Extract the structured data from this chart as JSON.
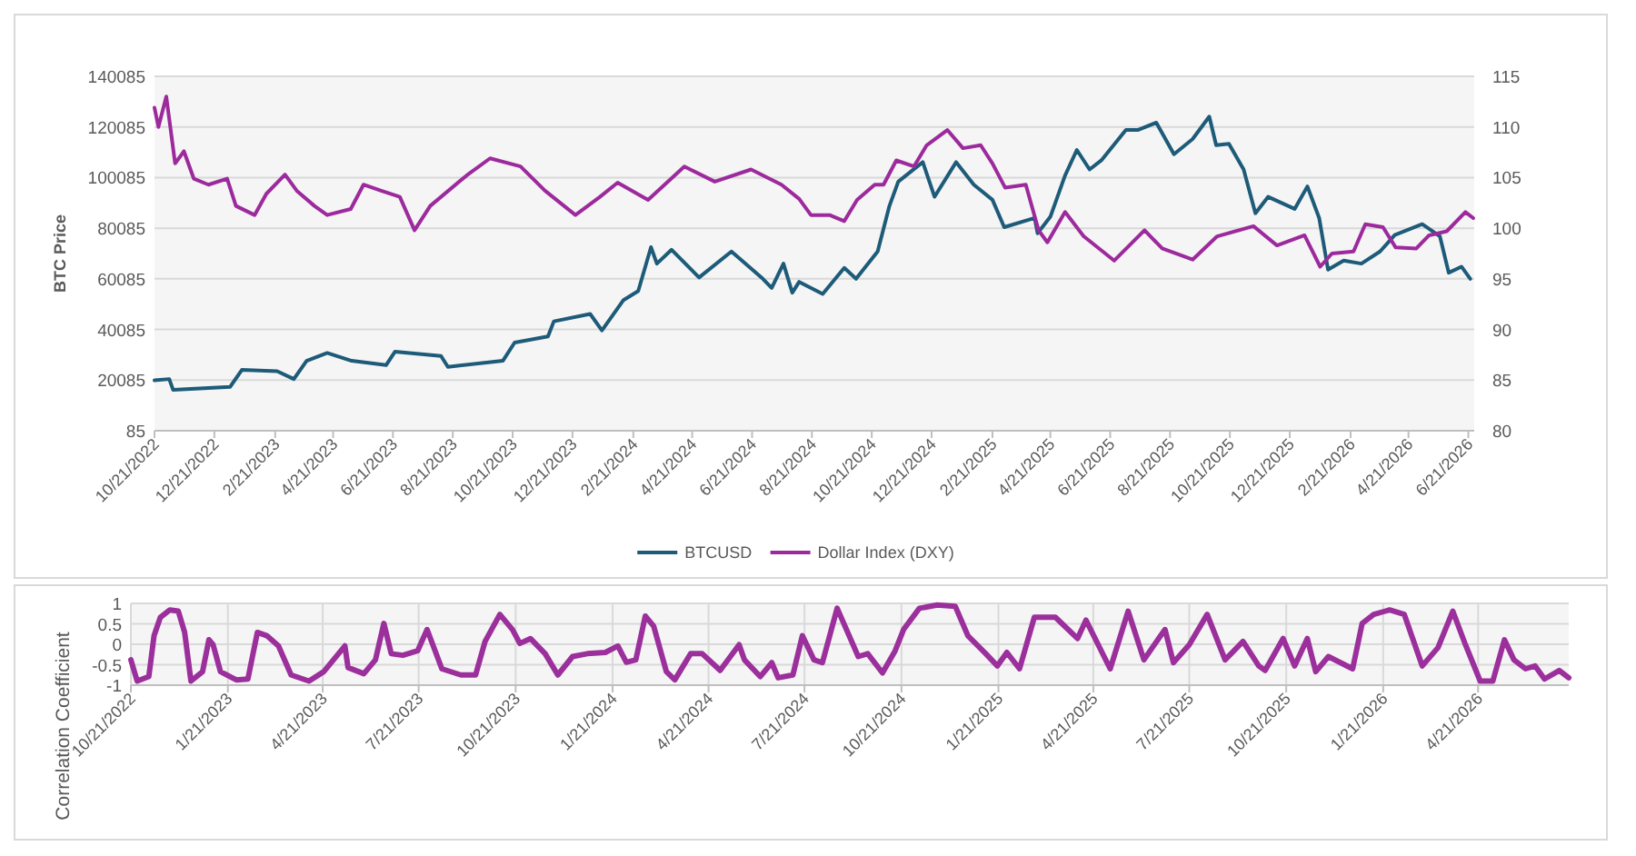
{
  "chart_data": [
    {
      "type": "line",
      "ylabel": "BTC Price",
      "legend": "bottom",
      "grid": "y",
      "xlim": [
        "2022-10-21",
        "2026-06-27"
      ],
      "xticks": [
        {
          "value": "2022-10-21",
          "label": "10/21/2022"
        },
        {
          "value": "2022-12-21",
          "label": "12/21/2022"
        },
        {
          "value": "2023-02-21",
          "label": "2/21/2023"
        },
        {
          "value": "2023-04-21",
          "label": "4/21/2023"
        },
        {
          "value": "2023-06-21",
          "label": "6/21/2023"
        },
        {
          "value": "2023-08-21",
          "label": "8/21/2023"
        },
        {
          "value": "2023-10-21",
          "label": "10/21/2023"
        },
        {
          "value": "2023-12-21",
          "label": "12/21/2023"
        },
        {
          "value": "2024-02-21",
          "label": "2/21/2024"
        },
        {
          "value": "2024-04-21",
          "label": "4/21/2024"
        },
        {
          "value": "2024-06-21",
          "label": "6/21/2024"
        },
        {
          "value": "2024-08-21",
          "label": "8/21/2024"
        },
        {
          "value": "2024-10-21",
          "label": "10/21/2024"
        },
        {
          "value": "2024-12-21",
          "label": "12/21/2024"
        },
        {
          "value": "2025-02-21",
          "label": "2/21/2025"
        },
        {
          "value": "2025-04-21",
          "label": "4/21/2025"
        },
        {
          "value": "2025-06-21",
          "label": "6/21/2025"
        },
        {
          "value": "2025-08-21",
          "label": "8/21/2025"
        },
        {
          "value": "2025-10-21",
          "label": "10/21/2025"
        },
        {
          "value": "2025-12-21",
          "label": "12/21/2025"
        },
        {
          "value": "2026-02-21",
          "label": "2/21/2026"
        },
        {
          "value": "2026-04-21",
          "label": "4/21/2026"
        },
        {
          "value": "2026-06-21",
          "label": "6/21/2026"
        }
      ],
      "ylim": [
        85,
        140085
      ],
      "yticks": [
        85,
        20085,
        40085,
        60085,
        80085,
        100085,
        120085,
        140085
      ],
      "y2lim": [
        80,
        115
      ],
      "y2ticks": [
        80,
        85,
        90,
        95,
        100,
        105,
        110,
        115
      ],
      "series": [
        {
          "name": "BTCUSD",
          "color": "#1d5b79",
          "x": [
            "2022-10-21",
            "2022-11-05",
            "2022-11-09",
            "2023-01-06",
            "2023-01-18",
            "2023-02-23",
            "2023-03-12",
            "2023-03-25",
            "2023-04-15",
            "2023-05-10",
            "2023-06-14",
            "2023-06-23",
            "2023-08-09",
            "2023-08-16",
            "2023-10-11",
            "2023-10-23",
            "2023-11-26",
            "2023-12-02",
            "2024-01-08",
            "2024-01-20",
            "2024-02-11",
            "2024-02-26",
            "2024-03-10",
            "2024-03-16",
            "2024-03-31",
            "2024-04-28",
            "2024-05-31",
            "2024-07-02",
            "2024-07-11",
            "2024-07-23",
            "2024-08-01",
            "2024-08-08",
            "2024-09-01",
            "2024-09-23",
            "2024-10-05",
            "2024-10-27",
            "2024-11-08",
            "2024-11-17",
            "2024-12-12",
            "2024-12-24",
            "2025-01-15",
            "2025-02-02",
            "2025-02-21",
            "2025-03-05",
            "2025-04-05",
            "2025-04-08",
            "2025-04-21",
            "2025-05-06",
            "2025-05-18",
            "2025-05-31",
            "2025-06-12",
            "2025-07-07",
            "2025-07-19",
            "2025-08-07",
            "2025-08-25",
            "2025-09-13",
            "2025-09-30",
            "2025-10-07",
            "2025-10-20",
            "2025-11-04",
            "2025-11-16",
            "2025-11-29",
            "2025-12-26",
            "2026-01-08",
            "2026-01-20",
            "2026-01-29",
            "2026-02-14",
            "2026-03-04",
            "2026-03-23",
            "2026-04-07",
            "2026-05-05",
            "2026-05-23",
            "2026-06-01",
            "2026-06-14",
            "2026-06-23"
          ],
          "values": [
            20000,
            20500,
            16200,
            17400,
            24100,
            23600,
            20500,
            27700,
            30800,
            27700,
            26000,
            31300,
            29600,
            25300,
            27700,
            34900,
            37300,
            43300,
            46200,
            39700,
            51700,
            55300,
            72600,
            66100,
            71600,
            60600,
            70900,
            60100,
            56500,
            66100,
            54600,
            58900,
            54100,
            64400,
            60100,
            70900,
            88900,
            98500,
            106200,
            92500,
            106200,
            97300,
            91300,
            80500,
            84100,
            78100,
            84600,
            100900,
            111000,
            103300,
            106900,
            118900,
            118900,
            121800,
            109300,
            115300,
            124200,
            112900,
            113400,
            103300,
            86000,
            92500,
            87700,
            96600,
            84100,
            63700,
            67300,
            66100,
            70900,
            77400,
            81700,
            76900,
            62500,
            64900,
            60100
          ]
        },
        {
          "name": "Dollar Index (DXY)",
          "color": "#9c2a9c",
          "axis": "y2",
          "x": [
            "2022-10-21",
            "2022-10-25",
            "2022-11-02",
            "2022-11-11",
            "2022-11-20",
            "2022-11-30",
            "2022-12-15",
            "2023-01-03",
            "2023-01-12",
            "2023-01-31",
            "2023-02-12",
            "2023-03-03",
            "2023-03-15",
            "2023-04-02",
            "2023-04-15",
            "2023-05-09",
            "2023-05-22",
            "2023-06-09",
            "2023-06-28",
            "2023-07-13",
            "2023-07-29",
            "2023-09-04",
            "2023-09-28",
            "2023-10-29",
            "2023-11-23",
            "2023-12-24",
            "2024-01-18",
            "2024-02-05",
            "2024-03-07",
            "2024-04-13",
            "2024-05-14",
            "2024-06-20",
            "2024-07-21",
            "2024-08-08",
            "2024-08-20",
            "2024-09-08",
            "2024-09-23",
            "2024-10-06",
            "2024-10-24",
            "2024-11-02",
            "2024-11-15",
            "2024-12-03",
            "2024-12-16",
            "2025-01-06",
            "2025-01-22",
            "2025-02-09",
            "2025-02-21",
            "2025-03-06",
            "2025-03-27",
            "2025-04-09",
            "2025-04-18",
            "2025-05-06",
            "2025-05-25",
            "2025-06-25",
            "2025-07-26",
            "2025-08-13",
            "2025-09-13",
            "2025-10-08",
            "2025-11-14",
            "2025-12-08",
            "2026-01-05",
            "2026-01-21",
            "2026-02-02",
            "2026-02-24",
            "2026-03-08",
            "2026-03-26",
            "2026-04-08",
            "2026-04-29",
            "2026-05-12",
            "2026-05-30",
            "2026-06-18",
            "2026-06-26"
          ],
          "values": [
            111.9,
            110.0,
            113.0,
            106.4,
            107.6,
            104.9,
            104.3,
            104.9,
            102.2,
            101.3,
            103.4,
            105.3,
            103.7,
            102.2,
            101.3,
            101.9,
            104.3,
            103.7,
            103.1,
            99.8,
            102.2,
            105.2,
            106.9,
            106.1,
            103.7,
            101.3,
            103.1,
            104.5,
            102.8,
            106.1,
            104.6,
            105.8,
            104.3,
            102.9,
            101.3,
            101.3,
            100.7,
            102.8,
            104.3,
            104.3,
            106.7,
            106.1,
            108.2,
            109.7,
            107.9,
            108.2,
            106.4,
            104.0,
            104.3,
            99.8,
            98.6,
            101.6,
            99.2,
            96.8,
            99.8,
            98.0,
            96.9,
            99.2,
            100.2,
            98.3,
            99.3,
            96.2,
            97.5,
            97.7,
            100.4,
            100.1,
            98.1,
            98.0,
            99.3,
            99.7,
            101.6,
            101.0
          ]
        }
      ]
    },
    {
      "type": "line",
      "ylabel": "Correlation Coefficient",
      "grid": true,
      "xlim": [
        "2022-10-21",
        "2026-07-16"
      ],
      "xticks": [
        {
          "value": "2022-10-21",
          "label": "10/21/2022"
        },
        {
          "value": "2023-01-21",
          "label": "1/21/2023"
        },
        {
          "value": "2023-04-21",
          "label": "4/21/2023"
        },
        {
          "value": "2023-07-21",
          "label": "7/21/2023"
        },
        {
          "value": "2023-10-21",
          "label": "10/21/2023"
        },
        {
          "value": "2024-01-21",
          "label": "1/21/2024"
        },
        {
          "value": "2024-04-21",
          "label": "4/21/2024"
        },
        {
          "value": "2024-07-21",
          "label": "7/21/2024"
        },
        {
          "value": "2024-10-21",
          "label": "10/21/2024"
        },
        {
          "value": "2025-01-21",
          "label": "1/21/2025"
        },
        {
          "value": "2025-04-21",
          "label": "4/21/2025"
        },
        {
          "value": "2025-07-21",
          "label": "7/21/2025"
        },
        {
          "value": "2025-10-21",
          "label": "10/21/2025"
        },
        {
          "value": "2026-01-21",
          "label": "1/21/2026"
        },
        {
          "value": "2026-04-21",
          "label": "4/21/2026"
        }
      ],
      "ylim": [
        -1,
        1
      ],
      "yticks": [
        -1,
        -0.5,
        0,
        0.5,
        1
      ],
      "series": [
        {
          "color": "#9b2f9b",
          "x": [
            "2022-10-21",
            "2022-10-27",
            "2022-11-07",
            "2022-11-12",
            "2022-11-18",
            "2022-11-27",
            "2022-12-05",
            "2022-12-11",
            "2022-12-17",
            "2022-12-28",
            "2023-01-03",
            "2023-01-07",
            "2023-01-14",
            "2023-01-29",
            "2023-02-09",
            "2023-02-18",
            "2023-02-27",
            "2023-03-10",
            "2023-03-22",
            "2023-04-08",
            "2023-04-22",
            "2023-05-12",
            "2023-05-15",
            "2023-05-30",
            "2023-06-10",
            "2023-06-18",
            "2023-06-25",
            "2023-07-06",
            "2023-07-20",
            "2023-07-29",
            "2023-08-12",
            "2023-08-30",
            "2023-09-13",
            "2023-09-22",
            "2023-10-06",
            "2023-10-18",
            "2023-10-25",
            "2023-11-04",
            "2023-11-18",
            "2023-11-30",
            "2023-12-14",
            "2023-12-28",
            "2024-01-14",
            "2024-01-26",
            "2024-02-03",
            "2024-02-12",
            "2024-02-21",
            "2024-02-29",
            "2024-03-12",
            "2024-03-20",
            "2024-04-04",
            "2024-04-15",
            "2024-05-02",
            "2024-05-20",
            "2024-05-25",
            "2024-06-09",
            "2024-06-20",
            "2024-06-26",
            "2024-07-10",
            "2024-07-19",
            "2024-07-30",
            "2024-08-07",
            "2024-08-21",
            "2024-09-10",
            "2024-09-19",
            "2024-10-03",
            "2024-10-15",
            "2024-10-23",
            "2024-11-07",
            "2024-11-24",
            "2024-12-11",
            "2024-12-23",
            "2025-01-09",
            "2025-01-20",
            "2025-01-29",
            "2025-02-10",
            "2025-02-24",
            "2025-03-16",
            "2025-03-25",
            "2025-04-06",
            "2025-04-14",
            "2025-05-07",
            "2025-05-24",
            "2025-06-08",
            "2025-06-16",
            "2025-06-28",
            "2025-07-06",
            "2025-07-21",
            "2025-08-07",
            "2025-08-24",
            "2025-09-10",
            "2025-09-25",
            "2025-10-01",
            "2025-10-18",
            "2025-10-29",
            "2025-11-10",
            "2025-11-18",
            "2025-11-30",
            "2025-12-23",
            "2026-01-01",
            "2026-01-12",
            "2026-01-27",
            "2026-02-10",
            "2026-02-27",
            "2026-03-14",
            "2026-03-28",
            "2026-04-09",
            "2026-04-23",
            "2026-05-05",
            "2026-05-16",
            "2026-05-25",
            "2026-06-05",
            "2026-06-14",
            "2026-06-23",
            "2026-07-07",
            "2026-07-16"
          ],
          "values": [
            -0.38,
            -0.9,
            -0.79,
            0.21,
            0.66,
            0.84,
            0.81,
            0.29,
            -0.9,
            -0.67,
            0.11,
            -0.01,
            -0.67,
            -0.87,
            -0.85,
            0.29,
            0.21,
            -0.04,
            -0.75,
            -0.9,
            -0.67,
            -0.04,
            -0.57,
            -0.72,
            -0.38,
            0.51,
            -0.23,
            -0.27,
            -0.16,
            0.36,
            -0.6,
            -0.75,
            -0.75,
            0.07,
            0.73,
            0.36,
            0.02,
            0.14,
            -0.23,
            -0.75,
            -0.3,
            -0.23,
            -0.2,
            -0.04,
            -0.44,
            -0.38,
            0.69,
            0.44,
            -0.67,
            -0.87,
            -0.23,
            -0.23,
            -0.64,
            -0.01,
            -0.38,
            -0.79,
            -0.45,
            -0.82,
            -0.75,
            0.21,
            -0.38,
            -0.45,
            0.88,
            -0.3,
            -0.23,
            -0.7,
            -0.16,
            0.36,
            0.88,
            0.96,
            0.93,
            0.21,
            -0.23,
            -0.53,
            -0.2,
            -0.6,
            0.66,
            0.66,
            0.44,
            0.14,
            0.59,
            -0.6,
            0.81,
            -0.38,
            -0.08,
            0.36,
            -0.45,
            -0.01,
            0.73,
            -0.38,
            0.07,
            -0.53,
            -0.64,
            0.14,
            -0.53,
            0.14,
            -0.67,
            -0.3,
            -0.6,
            0.51,
            0.73,
            0.84,
            0.73,
            -0.53,
            -0.08,
            0.81,
            -0.01,
            -0.9,
            -0.9,
            0.11,
            -0.38,
            -0.6,
            -0.53,
            -0.85,
            -0.64,
            -0.82
          ]
        }
      ]
    }
  ]
}
